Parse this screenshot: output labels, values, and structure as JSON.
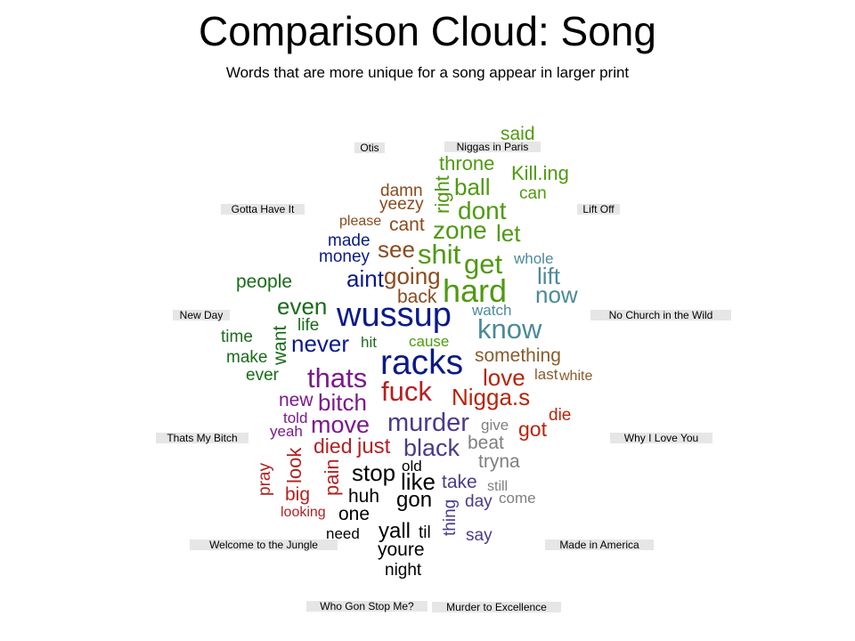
{
  "title": "Comparison Cloud: Song",
  "subtitle": "Words that are more unique for a song appear in larger print",
  "colors": {
    "gotta_have_it": "#1b7a1b",
    "lift_off": "#4c8a9a",
    "niggas_in_paris": "#4f9a10",
    "otis": "#8b4a1c",
    "new_day": "#1a6b1a",
    "no_church": "#4f8a8f",
    "thats_my_bitch": "#7a1a8a",
    "why_i_love_you": "#b8240c",
    "welcome_jungle": "#b22222",
    "made_in_america": "#4a3b8a",
    "who_gon_stop_me": "#000000",
    "murder_to_excellence": "#7f7f7f",
    "navy": "#0a1a8a",
    "brown": "#8b5a2b"
  },
  "songs": {
    "otis": "Otis",
    "niggas_in_paris": "Niggas in Paris",
    "gotta_have_it": "Gotta Have It",
    "lift_off": "Lift Off",
    "new_day": "New Day",
    "no_church": "No Church in the Wild",
    "thats_my_bitch": "Thats My Bitch",
    "why_i_love_you": "Why I Love You",
    "welcome_jungle": "Welcome to the Jungle",
    "made_in_america": "Made in America",
    "who_gon_stop_me": "Who Gon Stop Me?",
    "murder_to_excellence": "Murder to Excellence"
  },
  "words": {
    "said": "said",
    "throne": "throne",
    "right": "right",
    "ball": "ball",
    "kill_ing": "Kill.ing",
    "can": "can",
    "damn": "damn",
    "yeezy": "yeezy",
    "dont": "dont",
    "please": "please",
    "cant": "cant",
    "zone": "zone",
    "let": "let",
    "made": "made",
    "money": "money",
    "see": "see",
    "shit": "shit",
    "get": "get",
    "whole": "whole",
    "lift": "lift",
    "people": "people",
    "aint": "aint",
    "going": "going",
    "hard": "hard",
    "now": "now",
    "back": "back",
    "even": "even",
    "watch": "watch",
    "wussup": "wussup",
    "know": "know",
    "life": "life",
    "time": "time",
    "want": "want",
    "never": "never",
    "hit": "hit",
    "cause": "cause",
    "make": "make",
    "something": "something",
    "racks": "racks",
    "ever": "ever",
    "thats": "thats",
    "love": "love",
    "last": "last",
    "white": "white",
    "fuck": "fuck",
    "new": "new",
    "bitch": "bitch",
    "nigga_s": "Nigga.s",
    "die": "die",
    "told": "told",
    "move": "move",
    "murder": "murder",
    "give": "give",
    "got": "got",
    "yeah": "yeah",
    "died": "died",
    "just": "just",
    "black": "black",
    "beat": "beat",
    "look": "look",
    "pray": "pray",
    "pain": "pain",
    "old": "old",
    "tryna": "tryna",
    "stop": "stop",
    "like": "like",
    "take": "take",
    "still": "still",
    "big": "big",
    "huh": "huh",
    "gon": "gon",
    "thing": "thing",
    "day": "day",
    "come": "come",
    "looking": "looking",
    "one": "one",
    "need": "need",
    "yall": "yall",
    "til": "til",
    "say": "say",
    "youre": "youre",
    "night": "night"
  }
}
